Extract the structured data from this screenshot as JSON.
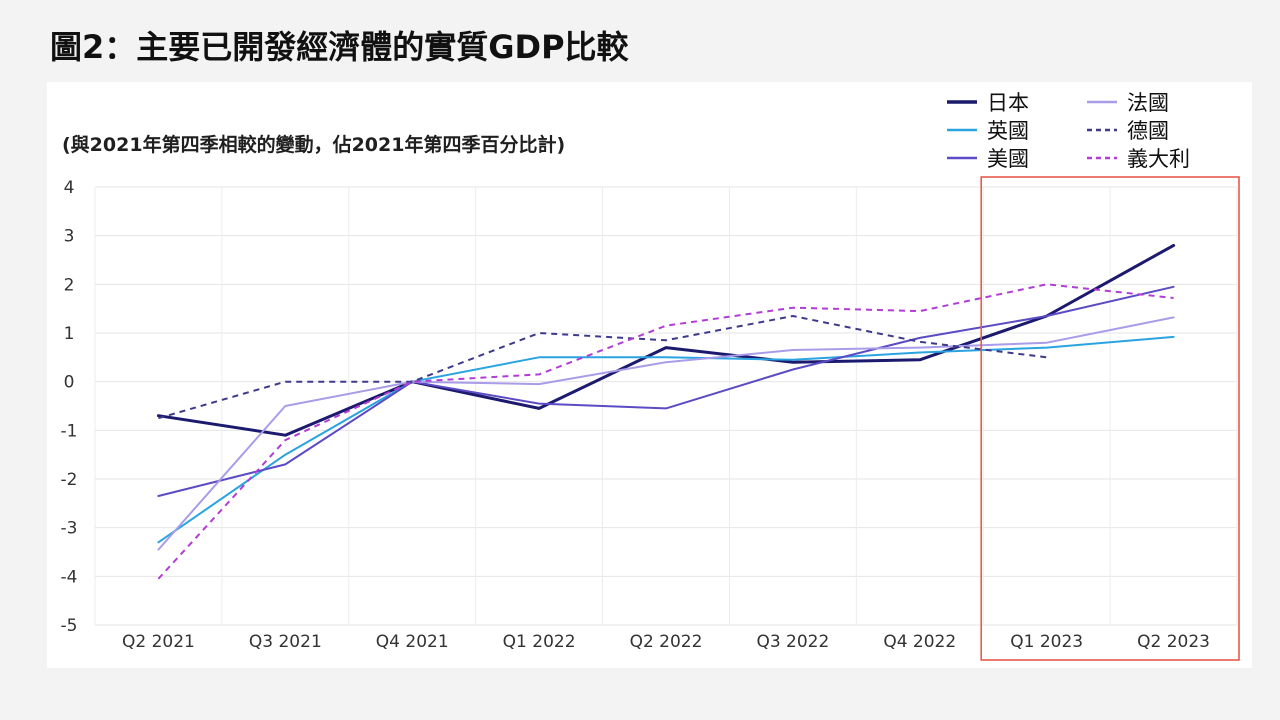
{
  "page_title": "圖2：主要已開發經濟體的實質GDP比較",
  "chart_data": {
    "type": "line",
    "subtitle": "(與2021年第四季相較的變動，佔2021年第四季百分比計)",
    "title": "",
    "xlabel": "",
    "ylabel": "",
    "categories": [
      "Q2 2021",
      "Q3 2021",
      "Q4 2021",
      "Q1 2022",
      "Q2 2022",
      "Q3 2022",
      "Q4 2022",
      "Q1 2023",
      "Q2 2023"
    ],
    "ylim": [
      -5,
      4
    ],
    "yticks": [
      4,
      3,
      2,
      1,
      0,
      -1,
      -2,
      -3,
      -4,
      -5
    ],
    "ytick_labels": [
      "4",
      "3",
      "2",
      "1",
      "0",
      "-1",
      "-2",
      "-3",
      "-4",
      "-5"
    ],
    "grid": true,
    "legend_position": "top-right",
    "highlight": {
      "from": "Q1 2023",
      "to": "Q2 2023",
      "color": "#e8594a"
    },
    "series": [
      {
        "name": "日本",
        "color": "#1b1a6e",
        "dashed": false,
        "width": 3,
        "values": [
          -0.7,
          -1.1,
          0.0,
          -0.55,
          0.7,
          0.4,
          0.45,
          1.35,
          2.8
        ]
      },
      {
        "name": "英國",
        "color": "#2aa4e0",
        "dashed": false,
        "width": 2,
        "values": [
          -3.3,
          -1.5,
          0.0,
          0.5,
          0.5,
          0.45,
          0.6,
          0.7,
          0.92
        ]
      },
      {
        "name": "美國",
        "color": "#5b4bc4",
        "dashed": false,
        "width": 2,
        "values": [
          -2.35,
          -1.7,
          0.0,
          -0.45,
          -0.55,
          0.25,
          0.9,
          1.35,
          1.95
        ]
      },
      {
        "name": "法國",
        "color": "#a99ce8",
        "dashed": false,
        "width": 2,
        "values": [
          -3.45,
          -0.5,
          0.0,
          -0.05,
          0.4,
          0.65,
          0.7,
          0.8,
          1.32
        ]
      },
      {
        "name": "德國",
        "color": "#3d3a8c",
        "dashed": true,
        "width": 2,
        "values": [
          -0.75,
          0.0,
          0.0,
          1.0,
          0.85,
          1.35,
          0.82,
          0.5,
          null
        ]
      },
      {
        "name": "義大利",
        "color": "#b23cd6",
        "dashed": true,
        "width": 2,
        "values": [
          -4.05,
          -1.2,
          0.0,
          0.15,
          1.15,
          1.52,
          1.45,
          2.0,
          1.72
        ]
      }
    ]
  }
}
